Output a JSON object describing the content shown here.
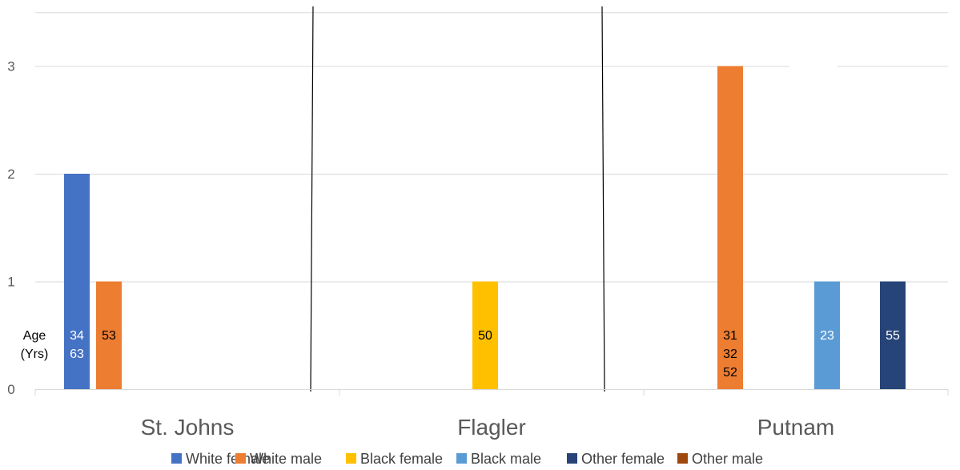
{
  "chart_data": {
    "type": "bar",
    "categories": [
      "St. Johns",
      "Flagler",
      "Putnam"
    ],
    "series": [
      {
        "name": "White female",
        "color": "#4472c4",
        "values": [
          2,
          0,
          0
        ]
      },
      {
        "name": "White male",
        "color": "#ed7d31",
        "values": [
          1,
          0,
          3
        ]
      },
      {
        "name": "Black female",
        "color": "#ffc000",
        "values": [
          0,
          1,
          0
        ]
      },
      {
        "name": "Black male",
        "color": "#5b9bd5",
        "values": [
          0,
          0,
          1
        ]
      },
      {
        "name": "Other female",
        "color": "#264478",
        "values": [
          0,
          0,
          1
        ]
      },
      {
        "name": "Other male",
        "color": "#9e480e",
        "values": [
          0,
          0,
          0
        ]
      }
    ],
    "ylim": [
      0,
      3.5
    ],
    "yticks": [
      0,
      1,
      2,
      3
    ],
    "grid": true,
    "legend_position": "bottom",
    "age_label": [
      "Age",
      "(Yrs)"
    ],
    "bar_annotations": [
      {
        "category": 0,
        "series": 0,
        "lines": [
          "34",
          "63"
        ],
        "text_color": "#ffffff"
      },
      {
        "category": 0,
        "series": 1,
        "lines": [
          "53"
        ],
        "text_color": "#000000"
      },
      {
        "category": 1,
        "series": 2,
        "lines": [
          "50"
        ],
        "text_color": "#000000"
      },
      {
        "category": 2,
        "series": 1,
        "lines": [
          "31",
          "32",
          "52"
        ],
        "text_color": "#000000"
      },
      {
        "category": 2,
        "series": 3,
        "lines": [
          "23"
        ],
        "text_color": "#ffffff"
      },
      {
        "category": 2,
        "series": 4,
        "lines": [
          "55"
        ],
        "text_color": "#ffffff"
      }
    ]
  }
}
